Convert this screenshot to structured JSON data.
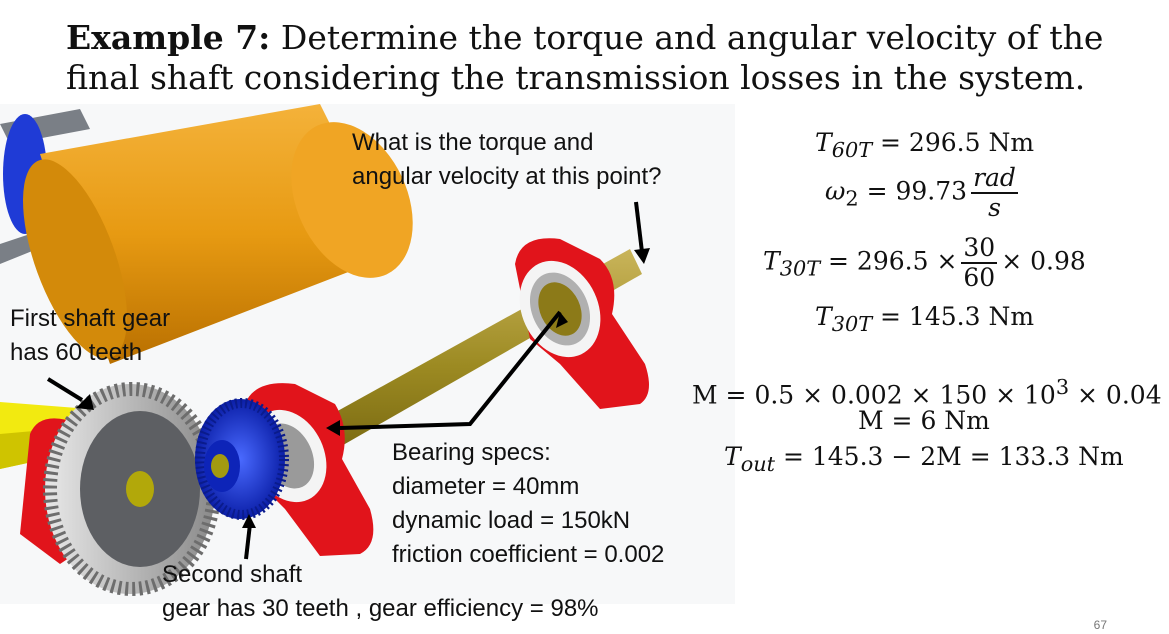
{
  "title": {
    "bold": "Example 7:",
    "rest": " Determine the torque and angular velocity of the",
    "line2": "final shaft considering the transmission losses in the system."
  },
  "labels": {
    "question_line1": "What is the torque and",
    "question_line2": "angular velocity at this point?",
    "first_gear_line1": "First shaft gear",
    "first_gear_line2": "has 60 teeth",
    "bearing_line1": "Bearing specs:",
    "bearing_line2": "diameter = 40mm",
    "bearing_line3": "dynamic load = 150kN",
    "bearing_line4": "friction coefficient = 0.002",
    "second_gear_line1": "Second shaft",
    "second_gear_line2": "gear has 30 teeth , gear efficiency = 98%"
  },
  "equations": {
    "t60": "T",
    "t60_sub": "60T",
    "t60_rhs": " = 296.5 Nm",
    "w2": "ω",
    "w2_sub": "2",
    "w2_rhs": " = 99.73",
    "w2_num": "rad",
    "w2_den": "s",
    "t30": "T",
    "t30_sub": "30T",
    "t30_rhs": " = 296.5 ×",
    "t30_num": "30",
    "t30_den": "60",
    "t30_tail": "× 0.98",
    "t30b": "T",
    "t30b_sub": "30T",
    "t30b_rhs": " = 145.3 Nm",
    "m_line": "M = 0.5 × 0.002 × 150 × 10",
    "m_exp": "3",
    "m_tail": " × 0.04",
    "m2_line": "M = 6 Nm",
    "tout": "T",
    "tout_sub": "out",
    "tout_rhs": " = 145.3 − 2M = 133.3 Nm"
  },
  "page_number": "67"
}
